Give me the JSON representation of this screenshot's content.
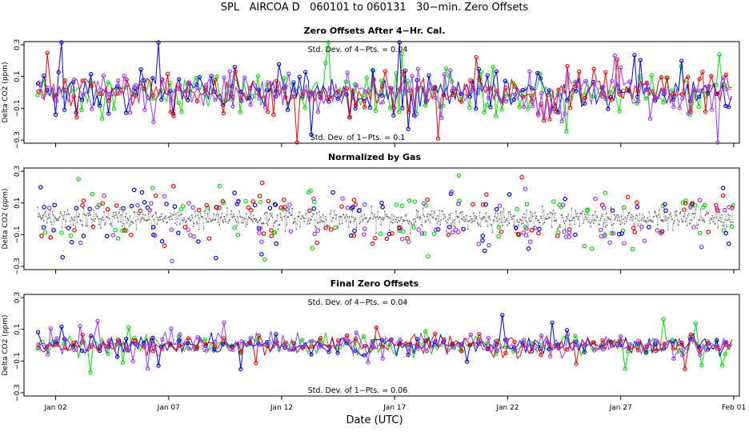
{
  "chart_data": {
    "type": "scatter",
    "title": "SPL   AIRCOA D   060101 to 060131   30−min. Zero Offsets",
    "xlabel": "Date (UTC)",
    "x_ticks": [
      "Jan 02",
      "Jan 07",
      "Jan 12",
      "Jan 17",
      "Jan 22",
      "Jan 27",
      "Feb 01"
    ],
    "x_tick_days": [
      2,
      7,
      12,
      17,
      22,
      27,
      32
    ],
    "xlim": [
      0.6,
      32.25
    ],
    "data_range_days": [
      1.2,
      32.0
    ],
    "series_colors": {
      "green": "#00dd00",
      "blue": "#0000dd",
      "red": "#ee0000",
      "purple": "#9933ff",
      "gray_normalized": "#666666"
    },
    "panels": [
      {
        "name": "zero-offsets-after-cal",
        "title": "Zero Offsets After 4−Hr. Cal.",
        "ylabel": "Delta CO2 (ppm)",
        "ylim": [
          -0.32,
          0.32
        ],
        "y_ticks": [
          "0.3",
          "0.1",
          "−0.1",
          "−0.3"
        ],
        "y_tick_values": [
          0.3,
          0.1,
          -0.1,
          -0.3
        ],
        "annotation_top": "Std. Dev. of 4−Pts. = 0.04",
        "annotation_bottom": "Std. Dev. of 1−Pts. = 0.1",
        "spread_sd": 0.1
      },
      {
        "name": "normalized-by-gas",
        "title": "Normalized by Gas",
        "ylabel": "Delta CO2 (ppm)",
        "ylim": [
          -0.32,
          0.32
        ],
        "y_ticks": [
          "0.3",
          "0.1",
          "−0.1",
          "−0.3"
        ],
        "y_tick_values": [
          0.3,
          0.1,
          -0.1,
          -0.3
        ],
        "annotation_top": "",
        "annotation_bottom": "",
        "spread_sd": 0.08
      },
      {
        "name": "final-zero-offsets",
        "title": "Final Zero Offsets",
        "ylabel": "Delta CO2 (ppm)",
        "ylim": [
          -0.32,
          0.32
        ],
        "y_ticks": [
          "0.3",
          "0.1",
          "−0.1",
          "−0.3"
        ],
        "y_tick_values": [
          0.3,
          0.1,
          -0.1,
          -0.3
        ],
        "annotation_top": "Std. Dev. of 4−Pts. = 0.04",
        "annotation_bottom": "Std. Dev. of 1−Pts. = 0.06",
        "spread_sd": 0.05
      }
    ]
  }
}
